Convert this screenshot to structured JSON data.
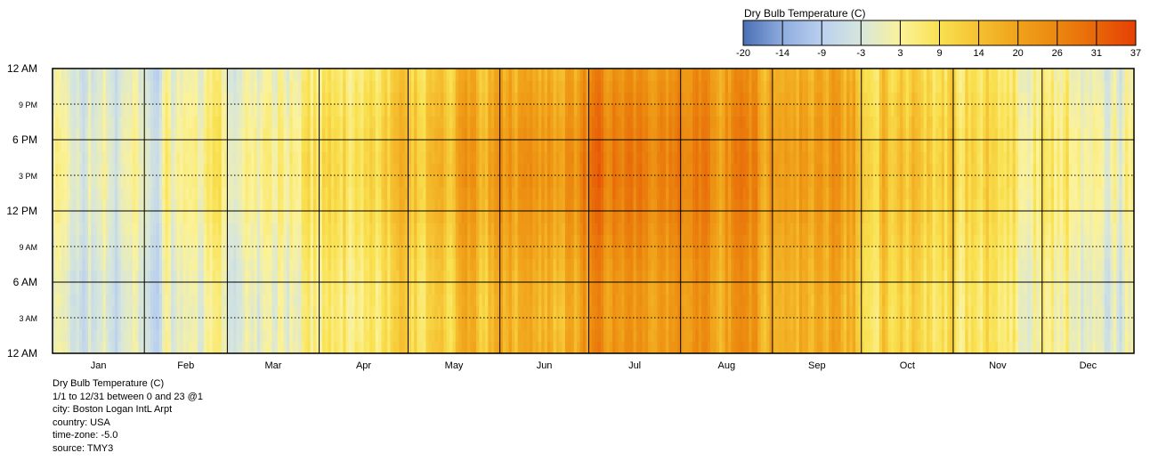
{
  "chart_data": {
    "type": "heatmap",
    "title": "Dry Bulb Temperature (C)",
    "unit": "C",
    "x_axis": {
      "range_days": [
        1,
        365
      ],
      "tick_labels": [
        "Jan",
        "Feb",
        "Mar",
        "Apr",
        "May",
        "Jun",
        "Jul",
        "Aug",
        "Sep",
        "Oct",
        "Nov",
        "Dec"
      ],
      "month_days": [
        31,
        28,
        31,
        30,
        31,
        30,
        31,
        31,
        30,
        31,
        30,
        31
      ]
    },
    "y_axis": {
      "range_hours": [
        0,
        24
      ],
      "tick_labels": [
        "12 AM",
        "3 AM",
        "6 AM",
        "9 AM",
        "12 PM",
        "3 PM",
        "6 PM",
        "9 PM",
        "12 AM"
      ],
      "tick_hours": [
        0,
        3,
        6,
        9,
        12,
        15,
        18,
        21,
        24
      ],
      "major_ticks": [
        "12 AM",
        "6 AM",
        "12 PM",
        "6 PM",
        "12 AM"
      ]
    },
    "grid": true,
    "legend": {
      "position": "top-right",
      "title": "Dry Bulb Temperature (C)",
      "tick_labels": [
        "-20",
        "-14",
        "-9",
        "-3",
        "3",
        "9",
        "14",
        "20",
        "26",
        "31",
        "37"
      ],
      "range": [
        -20,
        37
      ],
      "colors": [
        "#4a6fb5",
        "#8eacde",
        "#bad0ef",
        "#d6e6dc",
        "#fbf29a",
        "#f9e150",
        "#f5c031",
        "#f0a21a",
        "#eb870f",
        "#e86609",
        "#e63f04"
      ]
    },
    "monthly_profile": {
      "months": [
        "Jan",
        "Feb",
        "Mar",
        "Apr",
        "May",
        "Jun",
        "Jul",
        "Aug",
        "Sep",
        "Oct",
        "Nov",
        "Dec"
      ],
      "night_mean": [
        -3.5,
        -2,
        1,
        7,
        12,
        17,
        21,
        21,
        17,
        11,
        6,
        0
      ],
      "afternoon_mean": [
        -0.5,
        1.5,
        5,
        11,
        17,
        23,
        27,
        25,
        21,
        15,
        9,
        3.5
      ]
    }
  },
  "info": {
    "lines": [
      "Dry Bulb Temperature (C)",
      "1/1 to 12/31 between 0 and 23 @1",
      "city: Boston Logan IntL Arpt",
      "country: USA",
      "time-zone: -5.0",
      "source: TMY3"
    ]
  }
}
